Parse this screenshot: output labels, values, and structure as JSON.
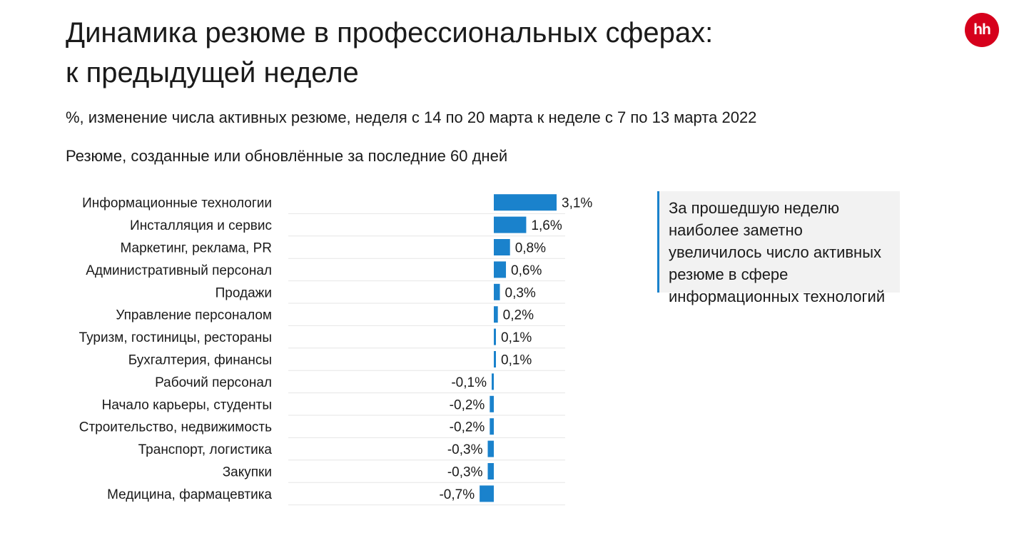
{
  "header": {
    "title_line1": "Динамика резюме в профессиональных сферах:",
    "title_line2": "к предыдущей неделе",
    "subtitle": "%, изменение числа активных резюме, неделя с 14 по 20 марта к неделе с 7 по 13 марта 2022",
    "note": "Резюме, созданные или обновлённые за последние 60 дней"
  },
  "logo": {
    "text": "hh",
    "color": "#d6001c"
  },
  "callout": {
    "text": "За прошедшую неделю наиболее заметно увеличилось число активных резюме в сфере информационных технологий",
    "accent_color": "#1a82cc"
  },
  "chart_data": {
    "type": "bar",
    "orientation": "horizontal",
    "bar_color": "#1a82cc",
    "categories": [
      "Информационные технологии",
      "Инсталляция и сервис",
      "Маркетинг, реклама, PR",
      "Административный персонал",
      "Продажи",
      "Управление персоналом",
      "Туризм, гостиницы, рестораны",
      "Бухгалтерия, финансы",
      "Рабочий персонал",
      "Начало карьеры, студенты",
      "Строительство, недвижимость",
      "Транспорт, логистика",
      "Закупки",
      "Медицина, фармацевтика"
    ],
    "values": [
      3.1,
      1.6,
      0.8,
      0.6,
      0.3,
      0.2,
      0.1,
      0.1,
      -0.1,
      -0.2,
      -0.2,
      -0.3,
      -0.3,
      -0.7
    ],
    "value_labels": [
      "3,1%",
      "1,6%",
      "0,8%",
      "0,6%",
      "0,3%",
      "0,2%",
      "0,1%",
      "0,1%",
      "-0,1%",
      "-0,2%",
      "-0,2%",
      "-0,3%",
      "-0,3%",
      "-0,7%"
    ],
    "xlim": [
      -10,
      3.1
    ],
    "grid": "horizontal separators",
    "legend": "none"
  }
}
